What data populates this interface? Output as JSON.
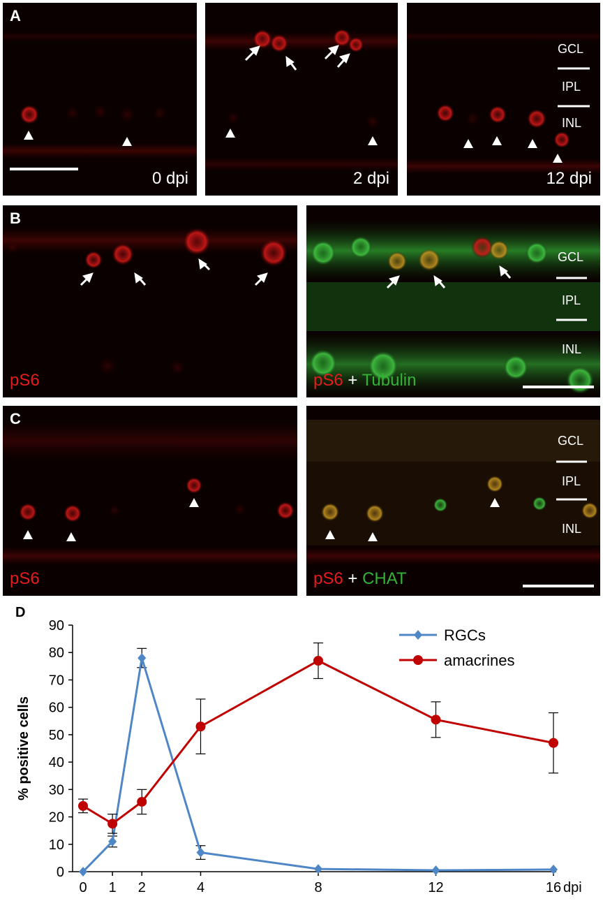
{
  "figure": {
    "panel_a": {
      "label": "A",
      "times": [
        "0 dpi",
        "2 dpi",
        "12 dpi"
      ],
      "layers": [
        "GCL",
        "IPL",
        "INL"
      ]
    },
    "panel_b": {
      "label": "B",
      "stain_left": "pS6",
      "stain_right_red": "pS6",
      "stain_right_plus": "+",
      "stain_right_green": "Tubulin",
      "layers": [
        "GCL",
        "IPL",
        "INL"
      ]
    },
    "panel_c": {
      "label": "C",
      "stain_left": "pS6",
      "stain_right_red": "pS6",
      "stain_right_plus": "+",
      "stain_right_green": "CHAT",
      "layers": [
        "GCL",
        "IPL",
        "INL"
      ]
    },
    "panel_d": {
      "label": "D"
    },
    "colors": {
      "pS6": "#e51c1c",
      "tubulin": "#33b233",
      "rgc": "#4f86c6",
      "amacrine": "#c00000"
    }
  },
  "chart_data": {
    "type": "line",
    "title": "",
    "xlabel": "dpi",
    "ylabel": "% positive cells",
    "x": [
      0,
      1,
      2,
      4,
      8,
      12,
      16
    ],
    "xticks": [
      "0",
      "1",
      "2",
      "4",
      "8",
      "12",
      "16"
    ],
    "ylim": [
      0,
      90
    ],
    "yticks": [
      "0",
      "10",
      "20",
      "30",
      "40",
      "50",
      "60",
      "70",
      "80",
      "90"
    ],
    "grid": false,
    "legend": "top-right",
    "series": [
      {
        "name": "RGCs",
        "marker": "diamond",
        "color": "#4f86c6",
        "values": [
          0,
          11,
          78,
          7,
          1,
          0.5,
          0.8
        ],
        "errors": [
          0,
          2,
          3.5,
          2.5,
          0,
          0,
          0
        ]
      },
      {
        "name": "amacrines",
        "marker": "circle",
        "color": "#c00000",
        "values": [
          24,
          17.5,
          25.5,
          53,
          77,
          55.5,
          47
        ],
        "errors": [
          2.5,
          3.5,
          4.5,
          10,
          6.5,
          6.5,
          11
        ]
      }
    ]
  }
}
